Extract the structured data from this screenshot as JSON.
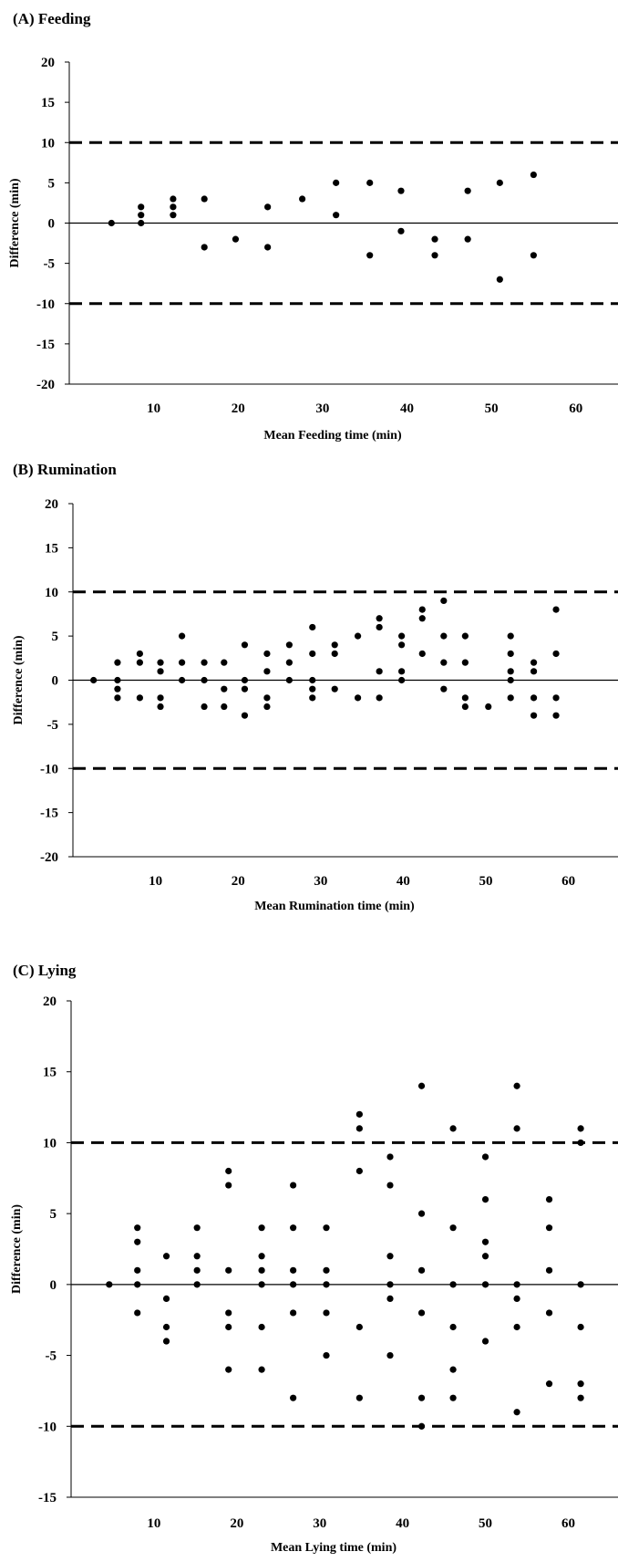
{
  "chart_data": [
    {
      "type": "scatter",
      "title": "(A) Feeding",
      "xlabel": "Mean Feeding time (min)",
      "ylabel": "Difference (min)",
      "ylim": [
        -20,
        20
      ],
      "yticks": [
        20,
        15,
        10,
        5,
        0,
        -5,
        -10,
        -15,
        -20
      ],
      "xlim": [
        0,
        65
      ],
      "xticks": [
        10,
        20,
        30,
        40,
        50,
        60
      ],
      "grid": false,
      "reference_lines": {
        "mean": 0,
        "limits": [
          10,
          -10
        ]
      },
      "points": [
        [
          5,
          0
        ],
        [
          8.5,
          2
        ],
        [
          8.5,
          1
        ],
        [
          8.5,
          0
        ],
        [
          12.3,
          3
        ],
        [
          12.3,
          2
        ],
        [
          12.3,
          1
        ],
        [
          16,
          3
        ],
        [
          16,
          -3
        ],
        [
          19.7,
          -2
        ],
        [
          23.5,
          2
        ],
        [
          23.5,
          -3
        ],
        [
          27.6,
          3
        ],
        [
          31.6,
          5
        ],
        [
          31.6,
          1
        ],
        [
          35.6,
          5
        ],
        [
          35.6,
          -4
        ],
        [
          39.3,
          4
        ],
        [
          39.3,
          -1
        ],
        [
          43.3,
          -2
        ],
        [
          43.3,
          -4
        ],
        [
          47.2,
          4
        ],
        [
          47.2,
          -2
        ],
        [
          51,
          5
        ],
        [
          51,
          -7
        ],
        [
          55,
          6
        ],
        [
          55,
          -4
        ]
      ]
    },
    {
      "type": "scatter",
      "title": "(B) Rumination",
      "xlabel": "Mean Rumination time (min)",
      "ylabel": "Difference (min)",
      "ylim": [
        -20,
        20
      ],
      "yticks": [
        20,
        15,
        10,
        5,
        0,
        -5,
        -10,
        -15,
        -20
      ],
      "xlim": [
        0,
        66
      ],
      "xticks": [
        10,
        20,
        30,
        40,
        50,
        60
      ],
      "grid": false,
      "reference_lines": {
        "mean": 0,
        "limits": [
          10,
          -10
        ]
      },
      "points": [
        [
          2.5,
          0
        ],
        [
          5.4,
          2
        ],
        [
          5.4,
          0
        ],
        [
          5.4,
          -1
        ],
        [
          5.4,
          -2
        ],
        [
          8.1,
          3
        ],
        [
          8.1,
          2
        ],
        [
          8.1,
          -2
        ],
        [
          10.6,
          2
        ],
        [
          10.6,
          1
        ],
        [
          10.6,
          -2
        ],
        [
          10.6,
          -3
        ],
        [
          13.2,
          5
        ],
        [
          13.2,
          2
        ],
        [
          13.2,
          0
        ],
        [
          15.9,
          2
        ],
        [
          15.9,
          0
        ],
        [
          15.9,
          -3
        ],
        [
          18.3,
          2
        ],
        [
          18.3,
          -1
        ],
        [
          18.3,
          -3
        ],
        [
          20.8,
          4
        ],
        [
          20.8,
          0
        ],
        [
          20.8,
          -1
        ],
        [
          20.8,
          -4
        ],
        [
          23.5,
          3
        ],
        [
          23.5,
          1
        ],
        [
          23.5,
          -2
        ],
        [
          23.5,
          -3
        ],
        [
          26.2,
          4
        ],
        [
          26.2,
          2
        ],
        [
          26.2,
          0
        ],
        [
          29,
          6
        ],
        [
          29,
          3
        ],
        [
          29,
          0
        ],
        [
          29,
          -1
        ],
        [
          29,
          -2
        ],
        [
          31.7,
          4
        ],
        [
          31.7,
          3
        ],
        [
          31.7,
          -1
        ],
        [
          34.5,
          5
        ],
        [
          34.5,
          -2
        ],
        [
          37.1,
          7
        ],
        [
          37.1,
          6
        ],
        [
          37.1,
          1
        ],
        [
          37.1,
          -2
        ],
        [
          39.8,
          5
        ],
        [
          39.8,
          4
        ],
        [
          39.8,
          1
        ],
        [
          39.8,
          0
        ],
        [
          42.3,
          8
        ],
        [
          42.3,
          7
        ],
        [
          42.3,
          3
        ],
        [
          44.9,
          9
        ],
        [
          44.9,
          5
        ],
        [
          44.9,
          2
        ],
        [
          44.9,
          -1
        ],
        [
          47.5,
          5
        ],
        [
          47.5,
          2
        ],
        [
          47.5,
          -2
        ],
        [
          47.5,
          -3
        ],
        [
          50.3,
          -3
        ],
        [
          53,
          5
        ],
        [
          53,
          3
        ],
        [
          53,
          1
        ],
        [
          53,
          0
        ],
        [
          53,
          -2
        ],
        [
          55.8,
          2
        ],
        [
          55.8,
          1
        ],
        [
          55.8,
          -2
        ],
        [
          55.8,
          -4
        ],
        [
          58.5,
          8
        ],
        [
          58.5,
          3
        ],
        [
          58.5,
          -2
        ],
        [
          58.5,
          -4
        ]
      ]
    },
    {
      "type": "scatter",
      "title": "(C) Lying",
      "xlabel": "Mean Lying time (min)",
      "ylabel": "Difference (min)",
      "ylim": [
        -15,
        20
      ],
      "yticks": [
        20,
        15,
        10,
        5,
        0,
        -5,
        -10,
        -15
      ],
      "xlim": [
        0,
        66
      ],
      "xticks": [
        10,
        20,
        30,
        40,
        50,
        60
      ],
      "grid": false,
      "reference_lines": {
        "mean": 0,
        "limits": [
          10,
          -10
        ]
      },
      "points": [
        [
          4.6,
          0
        ],
        [
          8,
          4
        ],
        [
          8,
          3
        ],
        [
          8,
          1
        ],
        [
          8,
          0
        ],
        [
          8,
          -2
        ],
        [
          11.5,
          2
        ],
        [
          11.5,
          -1
        ],
        [
          11.5,
          -3
        ],
        [
          11.5,
          -4
        ],
        [
          15.2,
          4
        ],
        [
          15.2,
          2
        ],
        [
          15.2,
          1
        ],
        [
          15.2,
          0
        ],
        [
          19,
          8
        ],
        [
          19,
          7
        ],
        [
          19,
          1
        ],
        [
          19,
          -2
        ],
        [
          19,
          -3
        ],
        [
          19,
          -6
        ],
        [
          23,
          4
        ],
        [
          23,
          2
        ],
        [
          23,
          1
        ],
        [
          23,
          0
        ],
        [
          23,
          -3
        ],
        [
          23,
          -6
        ],
        [
          26.8,
          7
        ],
        [
          26.8,
          4
        ],
        [
          26.8,
          1
        ],
        [
          26.8,
          0
        ],
        [
          26.8,
          -2
        ],
        [
          26.8,
          -8
        ],
        [
          30.8,
          4
        ],
        [
          30.8,
          1
        ],
        [
          30.8,
          0
        ],
        [
          30.8,
          -2
        ],
        [
          30.8,
          -5
        ],
        [
          34.8,
          12
        ],
        [
          34.8,
          11
        ],
        [
          34.8,
          8
        ],
        [
          34.8,
          -3
        ],
        [
          34.8,
          -8
        ],
        [
          38.5,
          9
        ],
        [
          38.5,
          7
        ],
        [
          38.5,
          2
        ],
        [
          38.5,
          0
        ],
        [
          38.5,
          -1
        ],
        [
          38.5,
          -5
        ],
        [
          42.3,
          14
        ],
        [
          42.3,
          5
        ],
        [
          42.3,
          1
        ],
        [
          42.3,
          -2
        ],
        [
          42.3,
          -8
        ],
        [
          42.3,
          -10
        ],
        [
          46.1,
          11
        ],
        [
          46.1,
          4
        ],
        [
          46.1,
          0
        ],
        [
          46.1,
          -3
        ],
        [
          46.1,
          -6
        ],
        [
          46.1,
          -8
        ],
        [
          50,
          9
        ],
        [
          50,
          6
        ],
        [
          50,
          3
        ],
        [
          50,
          2
        ],
        [
          50,
          0
        ],
        [
          50,
          -4
        ],
        [
          53.8,
          14
        ],
        [
          53.8,
          11
        ],
        [
          53.8,
          0
        ],
        [
          53.8,
          -1
        ],
        [
          53.8,
          -3
        ],
        [
          53.8,
          -9
        ],
        [
          57.7,
          6
        ],
        [
          57.7,
          4
        ],
        [
          57.7,
          1
        ],
        [
          57.7,
          -2
        ],
        [
          57.7,
          -7
        ],
        [
          61.5,
          11
        ],
        [
          61.5,
          10
        ],
        [
          61.5,
          0
        ],
        [
          61.5,
          -3
        ],
        [
          61.5,
          -7
        ],
        [
          61.5,
          -8
        ]
      ]
    }
  ]
}
